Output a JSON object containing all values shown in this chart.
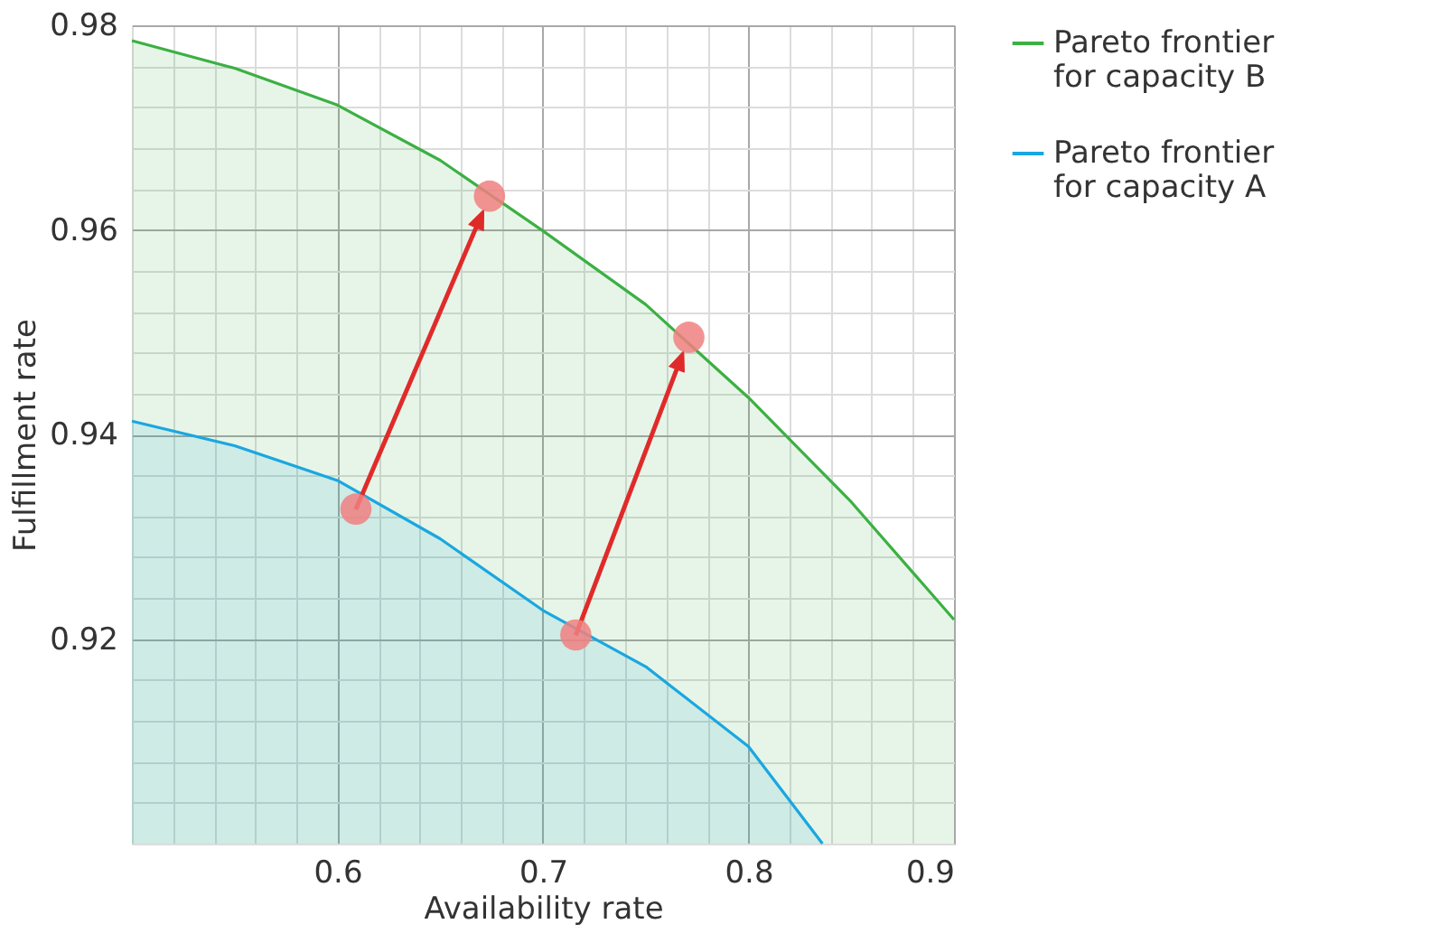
{
  "chart_data": {
    "type": "area",
    "xlabel": "Availability rate",
    "ylabel": "Fulfillment rate",
    "xlim": [
      0.5,
      0.9
    ],
    "ylim": [
      0.9,
      0.98
    ],
    "xticks": [
      {
        "value": 0.5,
        "label": null
      },
      {
        "value": 0.52,
        "label": null
      },
      {
        "value": 0.54,
        "label": null
      },
      {
        "value": 0.56,
        "label": null
      },
      {
        "value": 0.58,
        "label": null
      },
      0.6,
      {
        "value": 0.62,
        "label": null
      },
      {
        "value": 0.64,
        "label": null
      },
      {
        "value": 0.66,
        "label": null
      },
      {
        "value": 0.68,
        "label": null
      },
      0.7,
      {
        "value": 0.72,
        "label": null
      },
      {
        "value": 0.74,
        "label": null
      },
      {
        "value": 0.76,
        "label": null
      },
      {
        "value": 0.78,
        "label": null
      },
      0.8,
      {
        "value": 0.82,
        "label": null
      },
      {
        "value": 0.84,
        "label": null
      },
      {
        "value": 0.86,
        "label": null
      },
      {
        "value": 0.88,
        "label": null
      },
      0.9
    ],
    "yticks": [
      {
        "value": 0.9,
        "label": null
      },
      {
        "value": 0.904,
        "label": null
      },
      {
        "value": 0.908,
        "label": null
      },
      {
        "value": 0.912,
        "label": null
      },
      {
        "value": 0.916,
        "label": null
      },
      0.92,
      {
        "value": 0.924,
        "label": null
      },
      {
        "value": 0.928,
        "label": null
      },
      {
        "value": 0.932,
        "label": null
      },
      {
        "value": 0.936,
        "label": null
      },
      0.94,
      {
        "value": 0.944,
        "label": null
      },
      {
        "value": 0.948,
        "label": null
      },
      {
        "value": 0.952,
        "label": null
      },
      {
        "value": 0.956,
        "label": null
      },
      0.96,
      {
        "value": 0.964,
        "label": null
      },
      {
        "value": 0.968,
        "label": null
      },
      {
        "value": 0.972,
        "label": null
      },
      {
        "value": 0.976,
        "label": null
      },
      0.98
    ],
    "grid": true,
    "legend": "top right",
    "series": [
      {
        "name": "Pareto frontier\nfor capacity B",
        "color": "#3cb043",
        "x": [
          0.5,
          0.55,
          0.6,
          0.65,
          0.7,
          0.75,
          0.8,
          0.85,
          0.9
        ],
        "values": [
          0.9785,
          0.9758,
          0.9722,
          0.9668,
          0.9599,
          0.9527,
          0.9436,
          0.9334,
          0.9219
        ]
      },
      {
        "name": "Pareto frontier\nfor capacity A",
        "color": "#1aa7e0",
        "x": [
          0.5,
          0.55,
          0.6,
          0.65,
          0.7,
          0.75,
          0.8,
          0.836
        ],
        "values": [
          0.9413,
          0.9389,
          0.9355,
          0.9298,
          0.9228,
          0.9173,
          0.9095,
          0.9
        ]
      },
      {
        "type": "scatter",
        "color": "#f08080",
        "x": [
          0.609,
          0.674,
          0.716,
          0.771
        ],
        "values": [
          0.9327,
          0.9633,
          0.9204,
          0.9495
        ]
      }
    ]
  }
}
